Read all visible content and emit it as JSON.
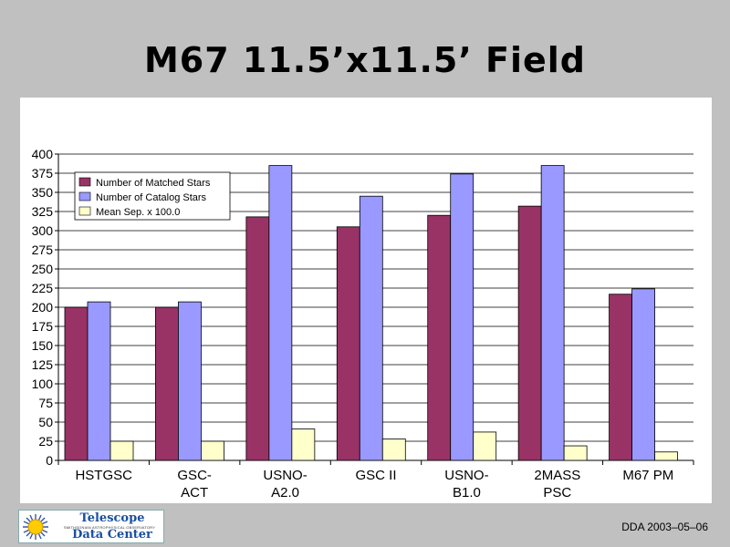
{
  "slide": {
    "title": "M67 11.5’x11.5’ Field",
    "footer_date": "DDA 2003–05–06"
  },
  "logo": {
    "line1": "Telescope",
    "line2": "SMITHSONIAN ASTROPHYSICAL OBSERVATORY",
    "line3": "Data Center"
  },
  "chart_data": {
    "type": "bar",
    "categories": [
      [
        "HSTGSC"
      ],
      [
        "GSC-",
        "ACT"
      ],
      [
        "USNO-",
        "A2.0"
      ],
      [
        "GSC II"
      ],
      [
        "USNO-",
        "B1.0"
      ],
      [
        "2MASS",
        "PSC"
      ],
      [
        "M67 PM"
      ]
    ],
    "series": [
      {
        "name": "Number of Matched Stars",
        "color": "#993366",
        "values": [
          200,
          200,
          318,
          305,
          320,
          332,
          217
        ]
      },
      {
        "name": "Number of Catalog Stars",
        "color": "#9999ff",
        "values": [
          207,
          207,
          385,
          345,
          374,
          385,
          224
        ]
      },
      {
        "name": "Mean Sep. x 100.0",
        "color": "#ffffcc",
        "values": [
          25,
          25,
          41,
          28,
          37,
          19,
          11
        ]
      }
    ],
    "ylim": [
      0,
      400
    ],
    "yticks": [
      0,
      25,
      50,
      75,
      100,
      125,
      150,
      175,
      200,
      225,
      250,
      275,
      300,
      325,
      350,
      375,
      400
    ],
    "grid": true,
    "legend_position": "top-left"
  }
}
